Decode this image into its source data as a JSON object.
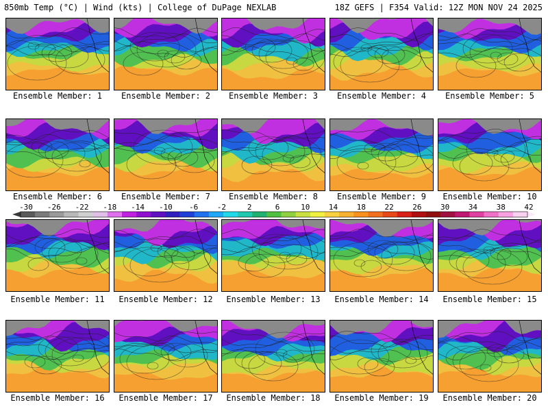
{
  "header": {
    "left": "850mb Temp (°C) | Wind (kts) | College of DuPage NEXLAB",
    "right": "18Z GEFS | F354 Valid: 12Z MON NOV 24 2025"
  },
  "panels": [
    {
      "label": "Ensemble Member: 1"
    },
    {
      "label": "Ensemble Member: 2"
    },
    {
      "label": "Ensemble Member: 3"
    },
    {
      "label": "Ensemble Member: 4"
    },
    {
      "label": "Ensemble Member: 5"
    },
    {
      "label": "Ensemble Member: 6"
    },
    {
      "label": "Ensemble Member: 7"
    },
    {
      "label": "Ensemble Member: 8"
    },
    {
      "label": "Ensemble Member: 9"
    },
    {
      "label": "Ensemble Member: 10"
    },
    {
      "label": "Ensemble Member: 11"
    },
    {
      "label": "Ensemble Member: 12"
    },
    {
      "label": "Ensemble Member: 13"
    },
    {
      "label": "Ensemble Member: 14"
    },
    {
      "label": "Ensemble Member: 15"
    },
    {
      "label": "Ensemble Member: 16"
    },
    {
      "label": "Ensemble Member: 17"
    },
    {
      "label": "Ensemble Member: 18"
    },
    {
      "label": "Ensemble Member: 19"
    },
    {
      "label": "Ensemble Member: 20"
    }
  ],
  "colorbar": {
    "ticks": [
      "-30",
      "-26",
      "-22",
      "-18",
      "-14",
      "-10",
      "-6",
      "-2",
      "2",
      "6",
      "10",
      "14",
      "18",
      "22",
      "26",
      "30",
      "34",
      "38",
      "42"
    ],
    "colors": [
      "#5a5a5a",
      "#7a7a7a",
      "#9a9a9a",
      "#b8b8b8",
      "#d0d0d0",
      "#e0c0e8",
      "#e070f0",
      "#c020e0",
      "#9010d0",
      "#6010c0",
      "#3020c0",
      "#2040d8",
      "#2070f0",
      "#20a8f8",
      "#20d8e8",
      "#20c8b0",
      "#20b070",
      "#50c040",
      "#90d040",
      "#c8e040",
      "#f0f040",
      "#f8d040",
      "#f8b030",
      "#f89020",
      "#f07020",
      "#e84818",
      "#d82018",
      "#b01010",
      "#901010",
      "#a01040",
      "#c01870",
      "#e040a0",
      "#f070c8",
      "#f8a0e0",
      "#f8d0f0"
    ]
  }
}
